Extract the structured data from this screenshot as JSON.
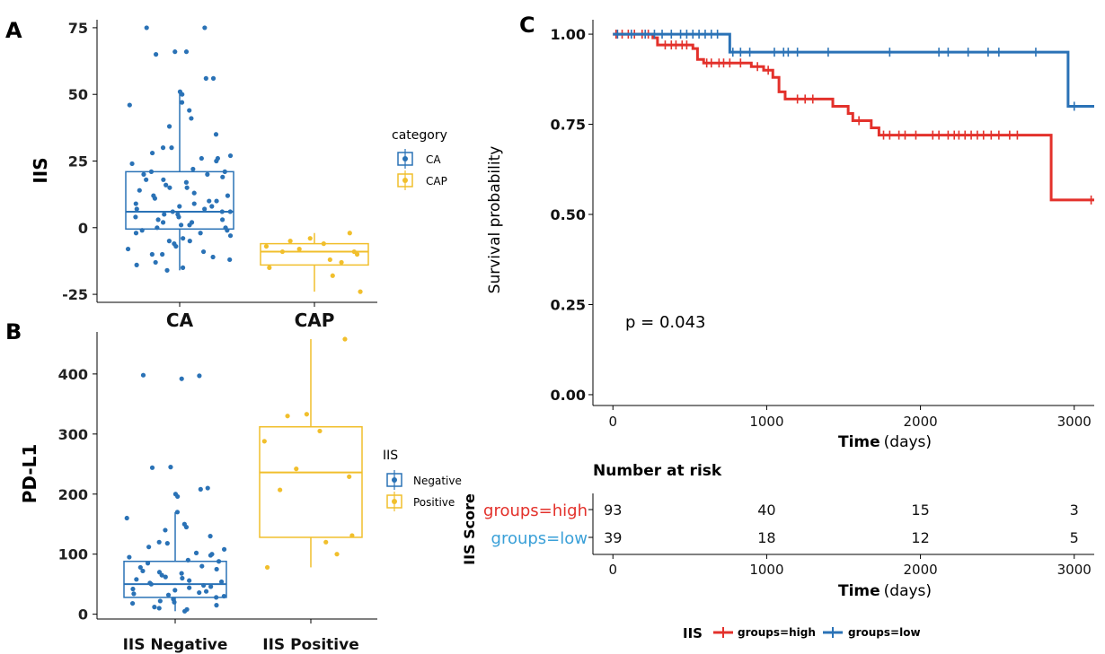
{
  "chart_data": [
    {
      "panel_label": "A",
      "type": "boxplot",
      "ylabel": "IIS",
      "categories": [
        "CA",
        "CAP"
      ],
      "y_ticks": [
        75,
        50,
        25,
        0,
        -25
      ],
      "ylim": [
        -28,
        78
      ],
      "legend_title": "category",
      "legend": [
        "CA",
        "CAP"
      ],
      "legend_placement": "right",
      "colors": {
        "CA": "#2a72b6",
        "CAP": "#f1bf2c"
      },
      "boxes": [
        {
          "category": "CA",
          "min": -16,
          "q1": -0.5,
          "median": 6,
          "q3": 21,
          "max": 51
        },
        {
          "category": "CAP",
          "min": -24,
          "q1": -14,
          "median": -9,
          "q3": -6,
          "max": -2
        }
      ],
      "points": {
        "CA": [
          75,
          75,
          66,
          66,
          65,
          56,
          56,
          51,
          50,
          47,
          46,
          44,
          41,
          38,
          35,
          30,
          30,
          28,
          27,
          26,
          26,
          25,
          24,
          22,
          21,
          21,
          20,
          20,
          19,
          18,
          18,
          17,
          16,
          15,
          15,
          14,
          13,
          12,
          12,
          11,
          10,
          10,
          9,
          9,
          8,
          8,
          7,
          7,
          6,
          6,
          6,
          5,
          5,
          4,
          4,
          3,
          3,
          2,
          2,
          1,
          1,
          0,
          0,
          -1,
          -1,
          -2,
          -2,
          -3,
          -4,
          -5,
          -5,
          -6,
          -7,
          -8,
          -9,
          -10,
          -10,
          -11,
          -12,
          -13,
          -14,
          -15,
          -16
        ],
        "CAP": [
          -2,
          -4,
          -5,
          -6,
          -7,
          -8,
          -9,
          -9,
          -10,
          -12,
          -13,
          -15,
          -18,
          -24
        ]
      }
    },
    {
      "panel_label": "B",
      "type": "boxplot",
      "ylabel": "PD-L1",
      "categories": [
        "IIS Negative",
        "IIS Positive"
      ],
      "y_ticks": [
        400,
        300,
        200,
        100,
        0
      ],
      "ylim": [
        -8,
        470
      ],
      "legend_title": "IIS",
      "legend": [
        "Negative",
        "Positive"
      ],
      "legend_placement": "right",
      "colors": {
        "Negative": "#2a72b6",
        "Positive": "#f1bf2c"
      },
      "boxes": [
        {
          "category": "IIS Negative",
          "min": 5,
          "q1": 28,
          "median": 50,
          "q3": 88,
          "max": 170
        },
        {
          "category": "IIS Positive",
          "min": 78,
          "q1": 128,
          "median": 236,
          "q3": 312,
          "max": 458
        }
      ],
      "points": {
        "IIS Negative": [
          398,
          397,
          392,
          245,
          244,
          210,
          208,
          200,
          196,
          170,
          160,
          150,
          145,
          140,
          130,
          120,
          118,
          112,
          108,
          102,
          100,
          98,
          95,
          90,
          88,
          85,
          80,
          78,
          75,
          72,
          70,
          68,
          65,
          62,
          60,
          58,
          56,
          54,
          52,
          50,
          48,
          46,
          44,
          42,
          40,
          38,
          36,
          34,
          32,
          30,
          28,
          25,
          22,
          20,
          18,
          15,
          12,
          10,
          8,
          5
        ],
        "IIS Positive": [
          458,
          333,
          330,
          305,
          288,
          242,
          229,
          207,
          131,
          120,
          100,
          78
        ]
      }
    },
    {
      "panel_label": "C",
      "type": "line",
      "subtype": "kaplan-meier",
      "ylabel": "Survival probability",
      "xlabel_bold": "Time",
      "xlabel_rest": "(days)",
      "y_ticks": [
        "1.00",
        "0.75",
        "0.50",
        "0.25",
        "0.00"
      ],
      "x_ticks": [
        0,
        1000,
        2000,
        3000
      ],
      "xlim": [
        -130,
        3130
      ],
      "ylim": [
        -0.03,
        1.04
      ],
      "annotation": "p = 0.043",
      "series": [
        {
          "name": "groups=high",
          "color": "#e3312b",
          "steps": [
            [
              0,
              1.0
            ],
            [
              260,
              0.99
            ],
            [
              290,
              0.97
            ],
            [
              520,
              0.96
            ],
            [
              550,
              0.93
            ],
            [
              590,
              0.92
            ],
            [
              900,
              0.91
            ],
            [
              980,
              0.9
            ],
            [
              1040,
              0.88
            ],
            [
              1080,
              0.84
            ],
            [
              1120,
              0.82
            ],
            [
              1430,
              0.8
            ],
            [
              1530,
              0.78
            ],
            [
              1560,
              0.76
            ],
            [
              1680,
              0.74
            ],
            [
              1730,
              0.72
            ],
            [
              2850,
              0.54
            ],
            [
              3130,
              0.54
            ]
          ],
          "censor_x": [
            20,
            60,
            100,
            140,
            190,
            230,
            340,
            380,
            410,
            450,
            480,
            610,
            640,
            690,
            720,
            760,
            830,
            940,
            1010,
            1200,
            1250,
            1300,
            1600,
            1760,
            1800,
            1860,
            1900,
            1970,
            2080,
            2120,
            2180,
            2220,
            2250,
            2290,
            2330,
            2370,
            2410,
            2460,
            2510,
            2580,
            2630,
            3110
          ]
        },
        {
          "name": "groups=low",
          "color": "#2a72b6",
          "steps": [
            [
              0,
              1.0
            ],
            [
              760,
              0.95
            ],
            [
              2960,
              0.8
            ],
            [
              3130,
              0.8
            ]
          ],
          "censor_x": [
            30,
            120,
            210,
            270,
            320,
            380,
            440,
            480,
            520,
            560,
            600,
            640,
            680,
            780,
            830,
            890,
            1050,
            1110,
            1140,
            1200,
            1400,
            1800,
            2120,
            2180,
            2310,
            2440,
            2510,
            2750,
            3000
          ]
        }
      ],
      "legend_title": "IIS",
      "legend": [
        "groups=high",
        "groups=low"
      ],
      "legend_placement": "bottom"
    },
    {
      "panel_label": "",
      "type": "table",
      "title": "Number at risk",
      "ylabel": "IIS Score",
      "xlabel_bold": "Time",
      "xlabel_rest": "(days)",
      "x_ticks": [
        0,
        1000,
        2000,
        3000
      ],
      "rows": [
        {
          "label": "groups=high",
          "color": "#e3312b",
          "values": [
            93,
            40,
            15,
            3
          ]
        },
        {
          "label": "groups=low",
          "color": "#3aa0d8",
          "values": [
            39,
            18,
            12,
            5
          ]
        }
      ]
    }
  ]
}
